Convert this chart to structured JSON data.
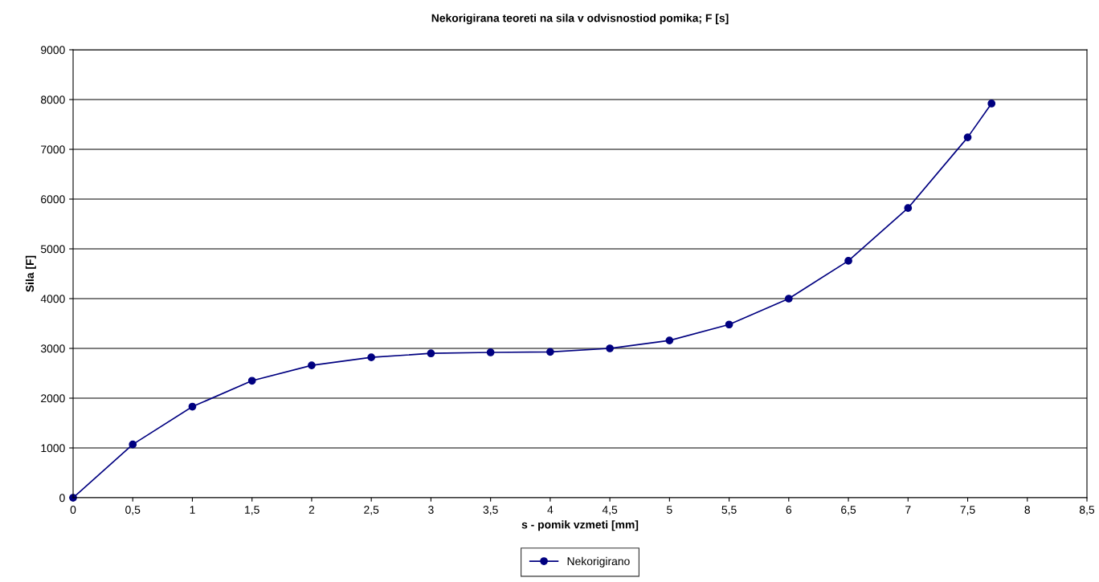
{
  "chart_data": {
    "type": "line",
    "title": "Nekorigirana teoreti na sila v odvisnostiod pomika; F [s]",
    "xlabel": "s - pomik vzmeti [mm]",
    "ylabel": "Sila [F]",
    "x": [
      0,
      0.5,
      1,
      1.5,
      2,
      2.5,
      3,
      3.5,
      4,
      4.5,
      5,
      5.5,
      6,
      6.5,
      7,
      7.5,
      7.7
    ],
    "series": [
      {
        "name": "Nekorigirano",
        "color": "#000080",
        "values": [
          0,
          1070,
          1830,
          2350,
          2660,
          2820,
          2900,
          2920,
          2930,
          3000,
          3160,
          3480,
          4000,
          4760,
          5820,
          7240,
          7920
        ]
      }
    ],
    "xlim": [
      0,
      8.5
    ],
    "xticks": [
      0,
      {
        "value": 0.5,
        "label": "0,5"
      },
      1,
      {
        "value": 1.5,
        "label": "1,5"
      },
      2,
      {
        "value": 2.5,
        "label": "2,5"
      },
      3,
      {
        "value": 3.5,
        "label": "3,5"
      },
      4,
      {
        "value": 4.5,
        "label": "4,5"
      },
      5,
      {
        "value": 5.5,
        "label": "5,5"
      },
      6,
      {
        "value": 6.5,
        "label": "6,5"
      },
      7,
      {
        "value": 7.5,
        "label": "7,5"
      },
      8,
      {
        "value": 8.5,
        "label": "8,5"
      }
    ],
    "ylim": [
      0,
      9000
    ],
    "yticks": [
      0,
      1000,
      2000,
      3000,
      4000,
      5000,
      6000,
      7000,
      8000,
      9000
    ],
    "grid": "y",
    "legend": "bottom",
    "marker": "circle",
    "line_style": "solid"
  }
}
